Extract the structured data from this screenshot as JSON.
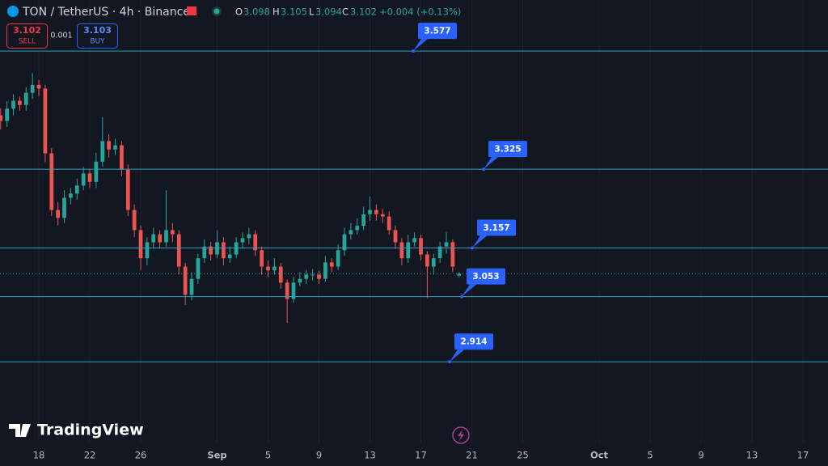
{
  "chart_data": {
    "type": "candlestick",
    "title": "TON / TetherUS · 4h · Binance",
    "header_ohlc": {
      "O": 3.098,
      "H": 3.105,
      "L": 3.094,
      "C": 3.102,
      "change_label": "+0.004 (+0.13%)"
    },
    "trade_buttons": {
      "sell_price": 3.102,
      "sell_label": "SELL",
      "spread": 0.001,
      "buy_price": 3.103,
      "buy_label": "BUY"
    },
    "brand": "TradingView",
    "x": [
      15,
      15.5,
      16,
      16.5,
      17,
      17.5,
      18,
      18.5,
      19,
      19.5,
      20,
      20.5,
      21,
      21.5,
      22,
      22.5,
      23,
      23.5,
      24,
      24.5,
      25,
      25.5,
      26,
      26.5,
      27,
      27.5,
      28,
      28.5,
      29,
      29.5,
      30,
      30.5,
      31,
      31.5,
      32,
      32.5,
      33,
      33.5,
      34,
      34.5,
      35,
      35.5,
      36,
      36.5,
      37,
      37.5,
      38,
      38.5,
      39,
      39.5,
      40,
      40.5,
      41,
      41.5,
      42,
      42.5,
      43,
      43.5,
      44,
      44.5,
      45,
      45.5,
      46,
      46.5,
      47,
      47.5,
      48,
      48.5,
      49,
      49.5,
      50,
      50.5,
      51
    ],
    "open": [
      3.44,
      3.428,
      3.454,
      3.471,
      3.462,
      3.488,
      3.505,
      3.497,
      3.359,
      3.238,
      3.221,
      3.264,
      3.273,
      3.29,
      3.316,
      3.298,
      3.341,
      3.385,
      3.367,
      3.376,
      3.324,
      3.238,
      3.195,
      3.135,
      3.169,
      3.186,
      3.169,
      3.195,
      3.186,
      3.117,
      3.057,
      3.091,
      3.135,
      3.16,
      3.143,
      3.169,
      3.135,
      3.143,
      3.169,
      3.178,
      3.186,
      3.152,
      3.117,
      3.109,
      3.117,
      3.083,
      3.048,
      3.083,
      3.091,
      3.1,
      3.1,
      3.091,
      3.126,
      3.117,
      3.152,
      3.186,
      3.195,
      3.204,
      3.229,
      3.238,
      3.229,
      3.224,
      3.195,
      3.169,
      3.135,
      3.169,
      3.178,
      3.143,
      3.117,
      3.135,
      3.16,
      3.169,
      3.098
    ],
    "high": [
      3.455,
      3.47,
      3.485,
      3.48,
      3.5,
      3.53,
      3.515,
      3.505,
      3.37,
      3.255,
      3.28,
      3.285,
      3.305,
      3.33,
      3.325,
      3.36,
      3.436,
      3.4,
      3.39,
      3.385,
      3.335,
      3.25,
      3.205,
      3.18,
      3.2,
      3.195,
      3.28,
      3.21,
      3.195,
      3.125,
      3.105,
      3.145,
      3.175,
      3.17,
      3.195,
      3.18,
      3.16,
      3.18,
      3.19,
      3.2,
      3.195,
      3.16,
      3.13,
      3.135,
      3.125,
      3.09,
      3.095,
      3.105,
      3.11,
      3.112,
      3.108,
      3.14,
      3.135,
      3.165,
      3.2,
      3.21,
      3.22,
      3.245,
      3.267,
      3.25,
      3.24,
      3.235,
      3.205,
      3.178,
      3.185,
      3.19,
      3.185,
      3.15,
      3.145,
      3.17,
      3.19,
      3.175,
      3.105
    ],
    "low": [
      3.41,
      3.415,
      3.44,
      3.45,
      3.45,
      3.475,
      3.48,
      3.34,
      3.225,
      3.205,
      3.21,
      3.25,
      3.26,
      3.28,
      3.285,
      3.285,
      3.33,
      3.35,
      3.355,
      3.31,
      3.225,
      3.18,
      3.11,
      3.12,
      3.155,
      3.155,
      3.16,
      3.17,
      3.1,
      3.035,
      3.045,
      3.08,
      3.125,
      3.13,
      3.135,
      3.12,
      3.125,
      3.135,
      3.155,
      3.165,
      3.14,
      3.1,
      3.095,
      3.1,
      3.07,
      2.997,
      3.04,
      3.075,
      3.08,
      3.088,
      3.08,
      3.085,
      3.105,
      3.11,
      3.14,
      3.175,
      3.185,
      3.195,
      3.215,
      3.215,
      3.21,
      3.185,
      3.155,
      3.12,
      3.125,
      3.16,
      3.13,
      3.05,
      3.1,
      3.125,
      3.145,
      3.105,
      3.094
    ],
    "close": [
      3.428,
      3.454,
      3.471,
      3.462,
      3.488,
      3.505,
      3.497,
      3.359,
      3.238,
      3.221,
      3.264,
      3.273,
      3.29,
      3.316,
      3.298,
      3.341,
      3.385,
      3.367,
      3.376,
      3.324,
      3.238,
      3.195,
      3.135,
      3.169,
      3.186,
      3.169,
      3.195,
      3.186,
      3.117,
      3.057,
      3.091,
      3.135,
      3.16,
      3.143,
      3.169,
      3.135,
      3.143,
      3.169,
      3.178,
      3.186,
      3.152,
      3.117,
      3.109,
      3.117,
      3.083,
      3.048,
      3.083,
      3.091,
      3.1,
      3.1,
      3.091,
      3.126,
      3.117,
      3.152,
      3.186,
      3.195,
      3.204,
      3.229,
      3.238,
      3.229,
      3.224,
      3.195,
      3.169,
      3.135,
      3.169,
      3.178,
      3.143,
      3.117,
      3.135,
      3.16,
      3.169,
      3.117,
      3.102
    ],
    "up_color": "#26a69a",
    "down_color": "#ef5350",
    "price_lines": [
      3.577,
      3.325,
      3.157,
      3.053,
      2.914
    ],
    "price_line_color": "#2a9fc0",
    "label_color": "#2962ff",
    "xlim": [
      14.95,
      79.97
    ],
    "ylim": [
      2.74,
      3.686
    ],
    "xticks": [
      18,
      22,
      26,
      {
        "value": 32,
        "label": "Sep"
      },
      {
        "value": 36,
        "label": "5"
      },
      {
        "value": 40,
        "label": "9"
      },
      {
        "value": 44,
        "label": "13"
      },
      {
        "value": 48,
        "label": "17"
      },
      {
        "value": 52,
        "label": "21"
      },
      {
        "value": 56,
        "label": "25"
      },
      {
        "value": 62,
        "label": "Oct"
      },
      {
        "value": 66,
        "label": "5"
      },
      {
        "value": 70,
        "label": "9"
      },
      {
        "value": 74,
        "label": "13"
      },
      {
        "value": 78,
        "label": "17"
      }
    ],
    "grid": true
  }
}
